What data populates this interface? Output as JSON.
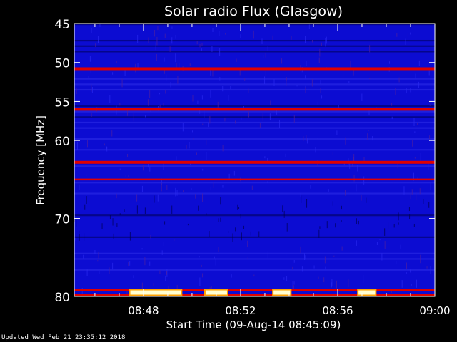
{
  "chart_data": {
    "type": "heatmap",
    "title": "Solar radio Flux (Glasgow)",
    "xlabel": "Start Time (09-Aug-14 08:45:09)",
    "ylabel": "Frequency [MHz]",
    "xlim_minutes_after_0845": [
      0.15,
      15
    ],
    "ylim_mhz": [
      45,
      80
    ],
    "x_ticks": [
      {
        "label": "08:48",
        "value": 3
      },
      {
        "label": "08:52",
        "value": 7
      },
      {
        "label": "08:56",
        "value": 11
      },
      {
        "label": "09:00",
        "value": 15
      }
    ],
    "y_ticks": [
      45,
      50,
      55,
      60,
      70,
      80
    ],
    "interference_lines_mhz": [
      {
        "freq": 50.8,
        "level": "strong"
      },
      {
        "freq": 56.0,
        "level": "strong"
      },
      {
        "freq": 62.8,
        "level": "strong"
      },
      {
        "freq": 65.0,
        "level": "medium"
      },
      {
        "freq": 79.2,
        "level": "medium"
      },
      {
        "freq": 79.9,
        "level": "strong"
      }
    ],
    "bursts": [
      {
        "start": 2.4,
        "end": 4.6,
        "freq": 79.5
      },
      {
        "start": 5.5,
        "end": 6.5,
        "freq": 79.5
      },
      {
        "start": 8.3,
        "end": 9.1,
        "freq": 79.5
      },
      {
        "start": 11.8,
        "end": 12.6,
        "freq": 79.5
      }
    ],
    "colors": {
      "background": "#0c0cd2",
      "dark": "#000050",
      "hot": "#e00000",
      "hotter": "#ffa000",
      "hottest": "#ffffd0"
    }
  },
  "footer": "Updated Wed Feb 21 23:35:12 2018"
}
